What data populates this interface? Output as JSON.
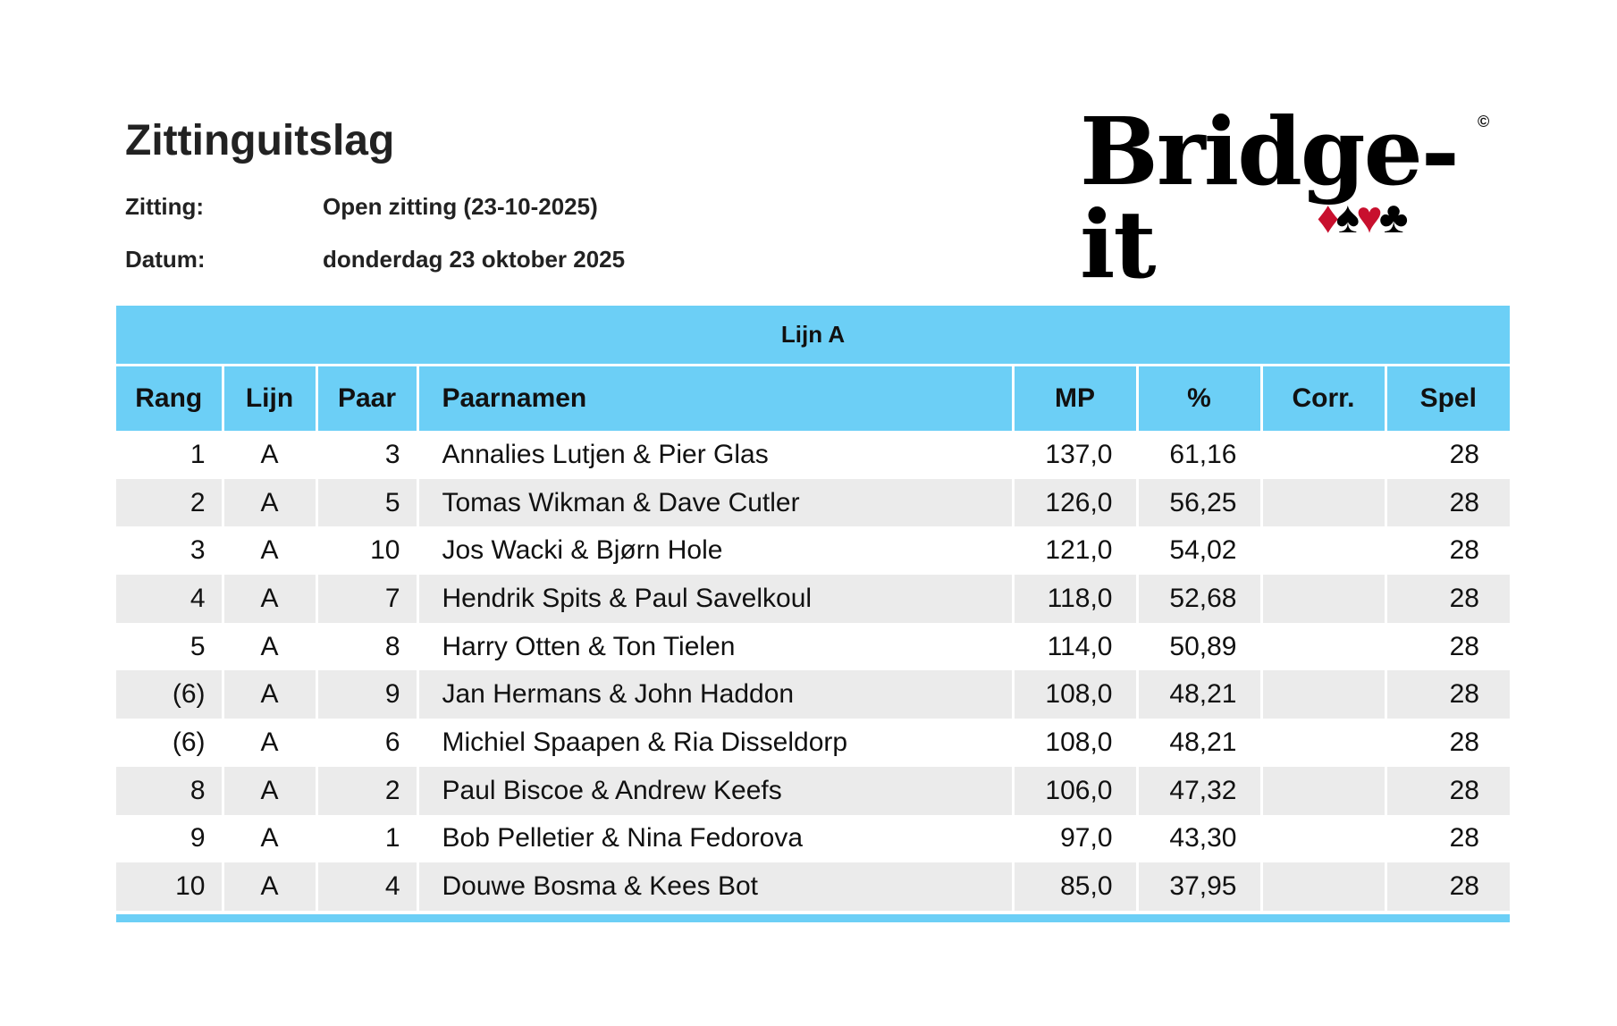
{
  "header": {
    "title": "Zittinguitslag",
    "zitting_label": "Zitting:",
    "zitting_value": "Open zitting (23-10-2025)",
    "datum_label": "Datum:",
    "datum_value": "donderdag 23 oktober 2025"
  },
  "logo": {
    "text": "Bridge-it",
    "copyright": "©",
    "suits": [
      "♦",
      "♠",
      "♥",
      "♣"
    ]
  },
  "colors": {
    "accent": "#6ccff6",
    "row_alt": "#ebebeb",
    "suit_red": "#c8102e"
  },
  "table": {
    "group_title": "Lijn A",
    "columns": [
      "Rang",
      "Lijn",
      "Paar",
      "Paarnamen",
      "MP",
      "%",
      "Corr.",
      "Spel"
    ],
    "rows": [
      [
        "1",
        "A",
        "3",
        "Annalies Lutjen & Pier Glas",
        "137,0",
        "61,16",
        "",
        "28"
      ],
      [
        "2",
        "A",
        "5",
        "Tomas Wikman & Dave Cutler",
        "126,0",
        "56,25",
        "",
        "28"
      ],
      [
        "3",
        "A",
        "10",
        "Jos Wacki & Bjørn Hole",
        "121,0",
        "54,02",
        "",
        "28"
      ],
      [
        "4",
        "A",
        "7",
        "Hendrik Spits & Paul Savelkoul",
        "118,0",
        "52,68",
        "",
        "28"
      ],
      [
        "5",
        "A",
        "8",
        "Harry Otten & Ton Tielen",
        "114,0",
        "50,89",
        "",
        "28"
      ],
      [
        "(6)",
        "A",
        "9",
        "Jan Hermans & John Haddon",
        "108,0",
        "48,21",
        "",
        "28"
      ],
      [
        "(6)",
        "A",
        "6",
        "Michiel Spaapen & Ria Disseldorp",
        "108,0",
        "48,21",
        "",
        "28"
      ],
      [
        "8",
        "A",
        "2",
        "Paul Biscoe & Andrew Keefs",
        "106,0",
        "47,32",
        "",
        "28"
      ],
      [
        "9",
        "A",
        "1",
        "Bob Pelletier & Nina Fedorova",
        "97,0",
        "43,30",
        "",
        "28"
      ],
      [
        "10",
        "A",
        "4",
        "Douwe Bosma & Kees Bot",
        "85,0",
        "37,95",
        "",
        "28"
      ]
    ]
  }
}
